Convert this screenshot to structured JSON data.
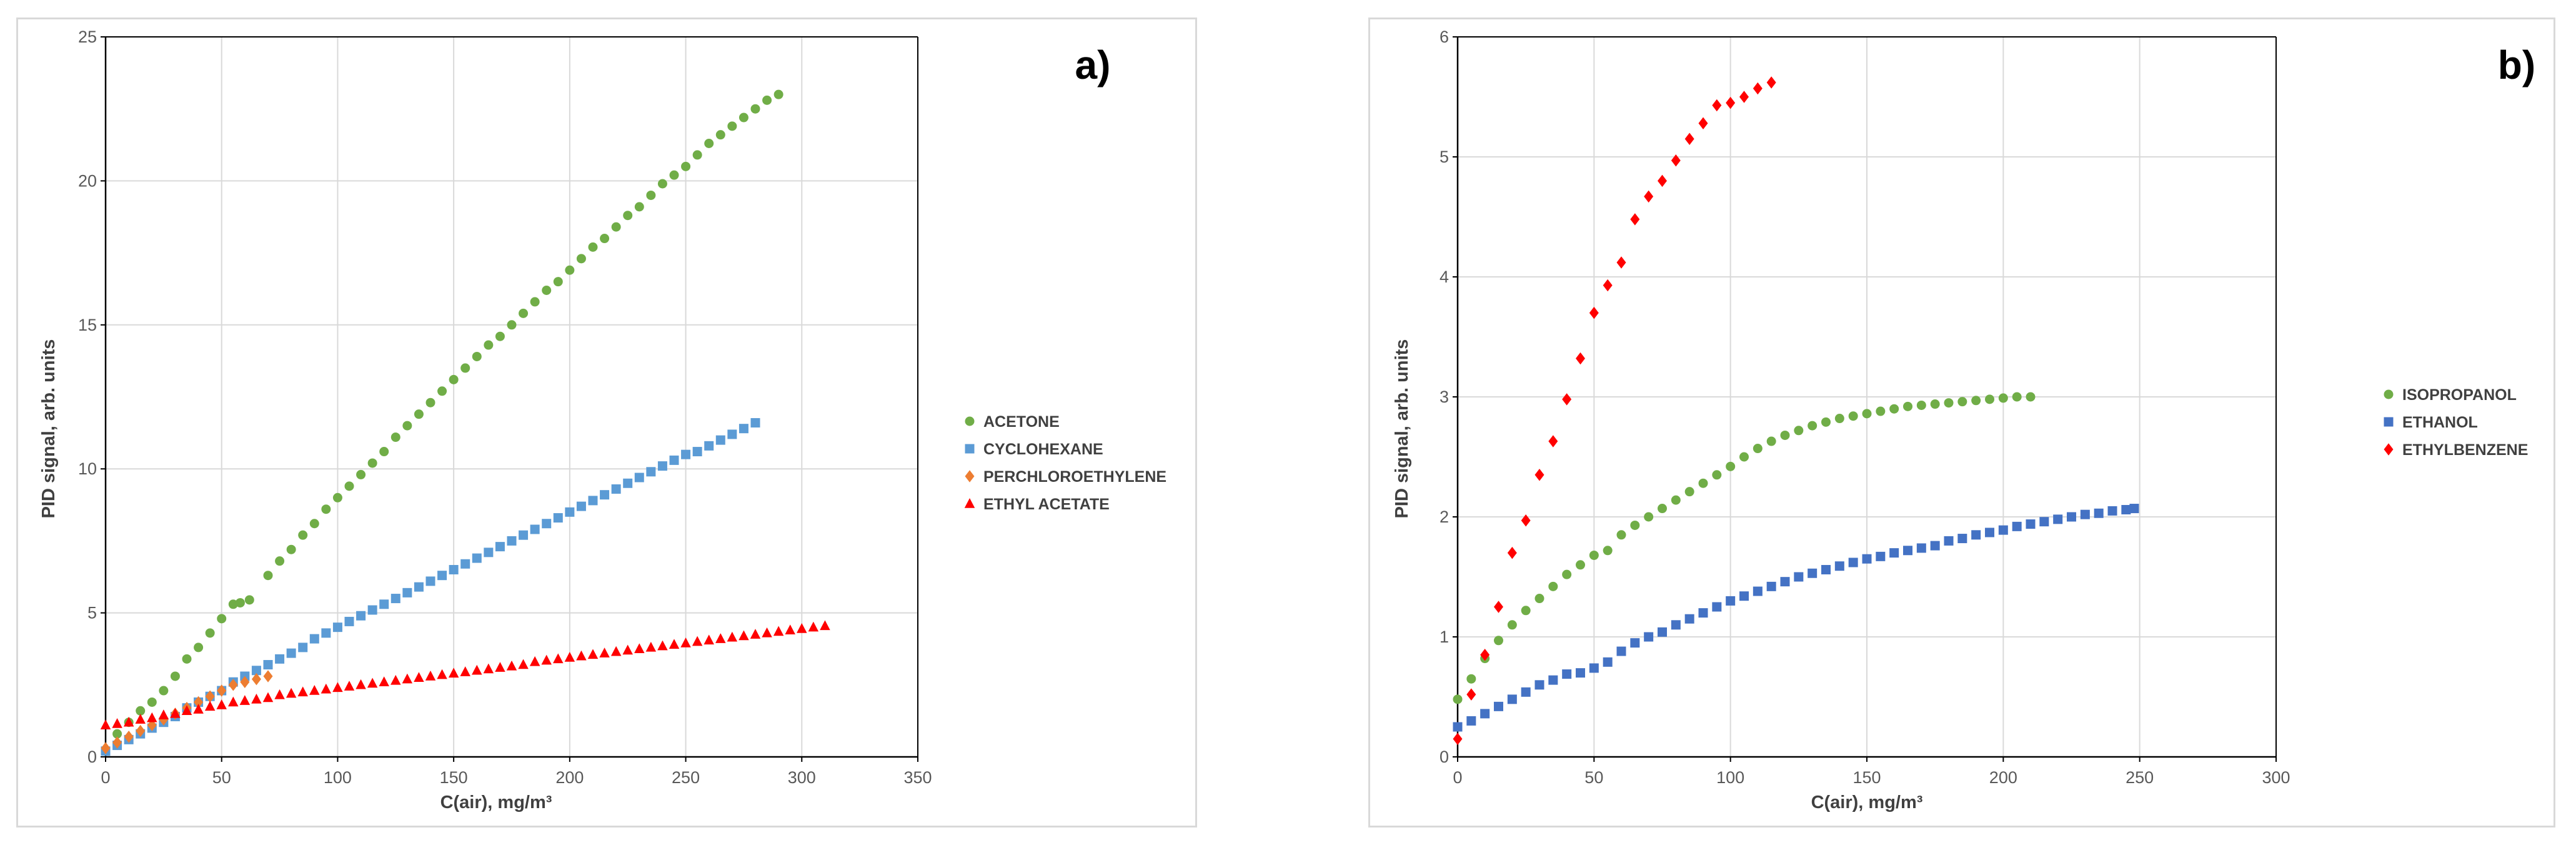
{
  "colors": {
    "green": "#70ad47",
    "blue": "#5b9bd5",
    "orange": "#ed7d31",
    "red": "#ff0000",
    "blue_dark": "#4472c4",
    "grid": "#d9d9d9",
    "axis": "#000000"
  },
  "chart_data": [
    {
      "type": "scatter",
      "panel_label": "a)",
      "title": "",
      "xlabel": "C(air), mg/m³",
      "ylabel": "PID signal, arb. units",
      "xlim": [
        0,
        350
      ],
      "ylim": [
        0,
        25
      ],
      "xticks": [
        0,
        50,
        100,
        150,
        200,
        250,
        300,
        350
      ],
      "yticks": [
        0,
        5,
        10,
        15,
        20,
        25
      ],
      "grid": true,
      "legend_position": "right",
      "series": [
        {
          "name": "ACETONE",
          "marker": "circle",
          "color": "#70ad47",
          "x": [
            0,
            5,
            10,
            15,
            20,
            25,
            30,
            35,
            40,
            45,
            50,
            55,
            58,
            62,
            70,
            75,
            80,
            85,
            90,
            95,
            100,
            105,
            110,
            115,
            120,
            125,
            130,
            135,
            140,
            145,
            150,
            155,
            160,
            165,
            170,
            175,
            180,
            185,
            190,
            195,
            200,
            205,
            210,
            215,
            220,
            225,
            230,
            235,
            240,
            245,
            250,
            255,
            260,
            265,
            270,
            275,
            280,
            285,
            290
          ],
          "y": [
            0.2,
            0.8,
            1.2,
            1.6,
            1.9,
            2.3,
            2.8,
            3.4,
            3.8,
            4.3,
            4.8,
            5.3,
            5.35,
            5.45,
            6.3,
            6.8,
            7.2,
            7.7,
            8.1,
            8.6,
            9.0,
            9.4,
            9.8,
            10.2,
            10.6,
            11.1,
            11.5,
            11.9,
            12.3,
            12.7,
            13.1,
            13.5,
            13.9,
            14.3,
            14.6,
            15.0,
            15.4,
            15.8,
            16.2,
            16.5,
            16.9,
            17.3,
            17.7,
            18.0,
            18.4,
            18.8,
            19.1,
            19.5,
            19.9,
            20.2,
            20.5,
            20.9,
            21.3,
            21.6,
            21.9,
            22.2,
            22.5,
            22.8,
            23.0
          ]
        },
        {
          "name": "CYCLOHEXANE",
          "marker": "square",
          "color": "#5b9bd5",
          "x": [
            0,
            5,
            10,
            15,
            20,
            25,
            30,
            35,
            40,
            45,
            50,
            55,
            60,
            65,
            70,
            75,
            80,
            85,
            90,
            95,
            100,
            105,
            110,
            115,
            120,
            125,
            130,
            135,
            140,
            145,
            150,
            155,
            160,
            165,
            170,
            175,
            180,
            185,
            190,
            195,
            200,
            205,
            210,
            215,
            220,
            225,
            230,
            235,
            240,
            245,
            250,
            255,
            260,
            265,
            270,
            275,
            280
          ],
          "y": [
            0.2,
            0.4,
            0.6,
            0.8,
            1.0,
            1.2,
            1.4,
            1.7,
            1.9,
            2.1,
            2.3,
            2.6,
            2.8,
            3.0,
            3.2,
            3.4,
            3.6,
            3.8,
            4.1,
            4.3,
            4.5,
            4.7,
            4.9,
            5.1,
            5.3,
            5.5,
            5.7,
            5.9,
            6.1,
            6.3,
            6.5,
            6.7,
            6.9,
            7.1,
            7.3,
            7.5,
            7.7,
            7.9,
            8.1,
            8.3,
            8.5,
            8.7,
            8.9,
            9.1,
            9.3,
            9.5,
            9.7,
            9.9,
            10.1,
            10.3,
            10.5,
            10.6,
            10.8,
            11.0,
            11.2,
            11.4,
            11.6
          ]
        },
        {
          "name": "PERCHLOROETHYLENE",
          "marker": "diamond",
          "color": "#ed7d31",
          "x": [
            0,
            5,
            10,
            15,
            20,
            25,
            30,
            35,
            40,
            45,
            50,
            55,
            60,
            65,
            70
          ],
          "y": [
            0.3,
            0.5,
            0.7,
            0.9,
            1.1,
            1.3,
            1.5,
            1.7,
            1.9,
            2.1,
            2.3,
            2.5,
            2.6,
            2.7,
            2.8
          ]
        },
        {
          "name": "ETHYL ACETATE",
          "marker": "triangle",
          "color": "#ff0000",
          "x": [
            0,
            5,
            10,
            15,
            20,
            25,
            30,
            35,
            40,
            45,
            50,
            55,
            60,
            65,
            70,
            75,
            80,
            85,
            90,
            95,
            100,
            105,
            110,
            115,
            120,
            125,
            130,
            135,
            140,
            145,
            150,
            155,
            160,
            165,
            170,
            175,
            180,
            185,
            190,
            195,
            200,
            205,
            210,
            215,
            220,
            225,
            230,
            235,
            240,
            245,
            250,
            255,
            260,
            265,
            270,
            275,
            280,
            285,
            290,
            295,
            300,
            305,
            310
          ],
          "y": [
            1.1,
            1.15,
            1.2,
            1.3,
            1.35,
            1.45,
            1.5,
            1.6,
            1.65,
            1.75,
            1.8,
            1.9,
            1.95,
            2.0,
            2.05,
            2.15,
            2.2,
            2.25,
            2.3,
            2.35,
            2.4,
            2.45,
            2.5,
            2.55,
            2.6,
            2.65,
            2.7,
            2.75,
            2.8,
            2.85,
            2.9,
            2.95,
            3.0,
            3.05,
            3.1,
            3.15,
            3.2,
            3.3,
            3.35,
            3.4,
            3.45,
            3.5,
            3.55,
            3.6,
            3.65,
            3.7,
            3.75,
            3.8,
            3.85,
            3.9,
            3.95,
            4.0,
            4.05,
            4.1,
            4.15,
            4.2,
            4.25,
            4.3,
            4.35,
            4.4,
            4.45,
            4.5,
            4.55
          ]
        }
      ]
    },
    {
      "type": "scatter",
      "panel_label": "b)",
      "title": "",
      "xlabel": "C(air), mg/m³",
      "ylabel": "PID signal, arb. units",
      "xlim": [
        0,
        300
      ],
      "ylim": [
        0,
        6
      ],
      "xticks": [
        0,
        50,
        100,
        150,
        200,
        250,
        300
      ],
      "yticks": [
        0,
        1,
        2,
        3,
        4,
        5,
        6
      ],
      "grid": true,
      "legend_position": "right",
      "series": [
        {
          "name": "ISOPROPANOL",
          "marker": "circle",
          "color": "#70ad47",
          "x": [
            0,
            5,
            10,
            15,
            20,
            25,
            30,
            35,
            40,
            45,
            50,
            55,
            60,
            65,
            70,
            75,
            80,
            85,
            90,
            95,
            100,
            105,
            110,
            115,
            120,
            125,
            130,
            135,
            140,
            145,
            150,
            155,
            160,
            165,
            170,
            175,
            180,
            185,
            190,
            195,
            200,
            205,
            210
          ],
          "y": [
            0.48,
            0.65,
            0.82,
            0.97,
            1.1,
            1.22,
            1.32,
            1.42,
            1.52,
            1.6,
            1.68,
            1.72,
            1.85,
            1.93,
            2.0,
            2.07,
            2.14,
            2.21,
            2.28,
            2.35,
            2.42,
            2.5,
            2.57,
            2.63,
            2.68,
            2.72,
            2.76,
            2.79,
            2.82,
            2.84,
            2.86,
            2.88,
            2.9,
            2.92,
            2.93,
            2.94,
            2.95,
            2.96,
            2.97,
            2.98,
            2.99,
            3.0,
            3.0
          ]
        },
        {
          "name": "ETHANOL",
          "marker": "square",
          "color": "#4472c4",
          "x": [
            0,
            5,
            10,
            15,
            20,
            25,
            30,
            35,
            40,
            45,
            50,
            55,
            60,
            65,
            70,
            75,
            80,
            85,
            90,
            95,
            100,
            105,
            110,
            115,
            120,
            125,
            130,
            135,
            140,
            145,
            150,
            155,
            160,
            165,
            170,
            175,
            180,
            185,
            190,
            195,
            200,
            205,
            210,
            215,
            220,
            225,
            230,
            235,
            240,
            245,
            248
          ],
          "y": [
            0.25,
            0.3,
            0.36,
            0.42,
            0.48,
            0.54,
            0.6,
            0.64,
            0.69,
            0.7,
            0.74,
            0.79,
            0.88,
            0.95,
            1.0,
            1.04,
            1.1,
            1.15,
            1.2,
            1.25,
            1.3,
            1.34,
            1.38,
            1.42,
            1.46,
            1.5,
            1.53,
            1.56,
            1.59,
            1.62,
            1.65,
            1.67,
            1.7,
            1.72,
            1.74,
            1.76,
            1.8,
            1.82,
            1.85,
            1.87,
            1.89,
            1.92,
            1.94,
            1.96,
            1.98,
            2.0,
            2.02,
            2.03,
            2.05,
            2.06,
            2.07
          ]
        },
        {
          "name": "ETHYLBENZENE",
          "marker": "diamond",
          "color": "#ff0000",
          "x": [
            0,
            5,
            10,
            15,
            20,
            25,
            30,
            35,
            40,
            45,
            50,
            55,
            60,
            65,
            70,
            75,
            80,
            85,
            90,
            95,
            100,
            105,
            110,
            115
          ],
          "y": [
            0.15,
            0.52,
            0.85,
            1.25,
            1.7,
            1.97,
            2.35,
            2.63,
            2.98,
            3.32,
            3.7,
            3.93,
            4.12,
            4.48,
            4.67,
            4.8,
            4.97,
            5.15,
            5.28,
            5.43,
            5.45,
            5.5,
            5.57,
            5.62
          ]
        }
      ]
    }
  ]
}
